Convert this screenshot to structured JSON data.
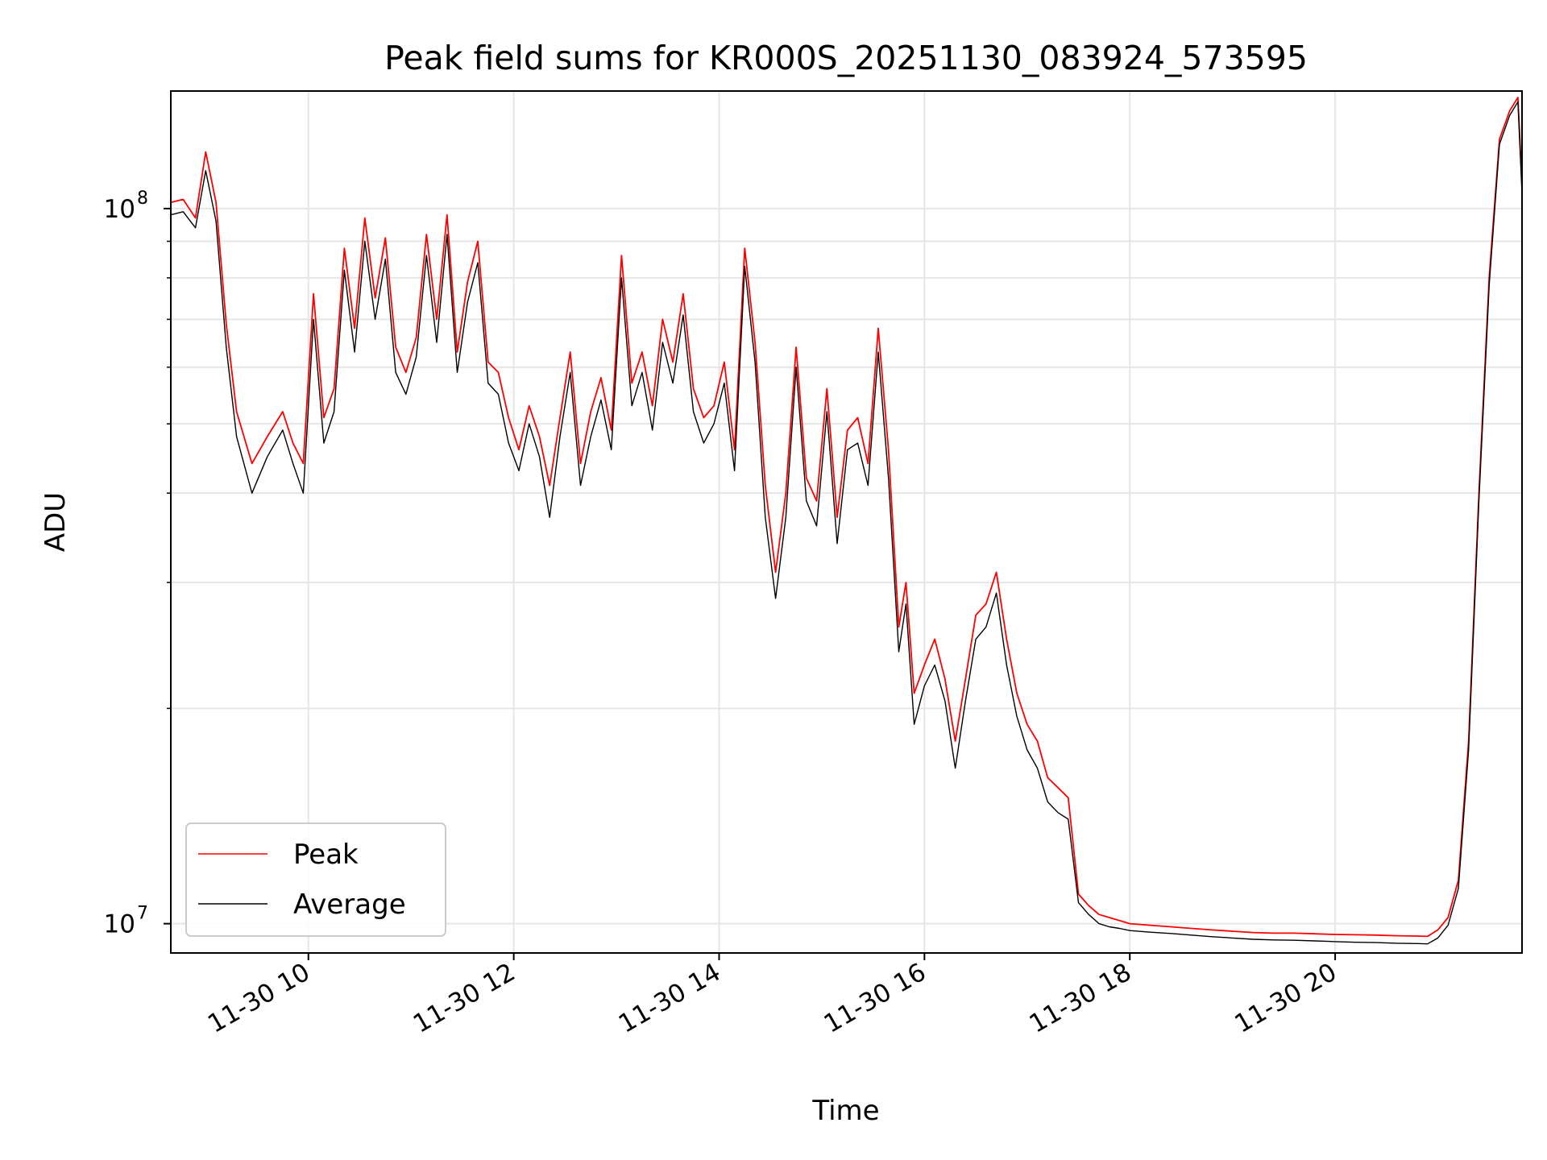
{
  "chart_data": {
    "type": "line",
    "title": "Peak field sums for KR000S_20251130_083924_573595",
    "xlabel": "Time",
    "ylabel": "ADU",
    "yscale": "log",
    "grid": true,
    "legend_loc": "lower-left",
    "x_unit": "hours (2025-11-30)",
    "xlim": [
      8.66,
      21.82
    ],
    "ylim": [
      9100000,
      146000000
    ],
    "x_ticks": [
      10,
      12,
      14,
      16,
      18,
      20
    ],
    "x_tick_labels": [
      "11-30 10",
      "11-30 12",
      "11-30 14",
      "11-30 16",
      "11-30 18",
      "11-30 20"
    ],
    "y_ticks": [
      10000000,
      100000000
    ],
    "y_tick_labels": [
      {
        "base": "10",
        "exp": "7"
      },
      {
        "base": "10",
        "exp": "8"
      }
    ],
    "series": [
      {
        "name": "Peak",
        "color": "#ff0000",
        "x": [
          8.66,
          8.78,
          8.9,
          9.0,
          9.1,
          9.2,
          9.3,
          9.45,
          9.6,
          9.75,
          9.85,
          9.95,
          10.05,
          10.15,
          10.25,
          10.35,
          10.45,
          10.55,
          10.65,
          10.75,
          10.85,
          10.95,
          11.05,
          11.15,
          11.25,
          11.35,
          11.45,
          11.55,
          11.65,
          11.75,
          11.85,
          11.95,
          12.05,
          12.15,
          12.25,
          12.35,
          12.45,
          12.55,
          12.65,
          12.75,
          12.85,
          12.95,
          13.05,
          13.15,
          13.25,
          13.35,
          13.45,
          13.55,
          13.65,
          13.75,
          13.85,
          13.95,
          14.05,
          14.15,
          14.25,
          14.35,
          14.45,
          14.55,
          14.65,
          14.75,
          14.85,
          14.95,
          15.05,
          15.15,
          15.25,
          15.35,
          15.45,
          15.55,
          15.65,
          15.75,
          15.82,
          15.9,
          16.0,
          16.1,
          16.2,
          16.3,
          16.4,
          16.5,
          16.6,
          16.7,
          16.8,
          16.9,
          17.0,
          17.1,
          17.2,
          17.3,
          17.4,
          17.5,
          17.6,
          17.7,
          17.8,
          17.9,
          18.0,
          18.2,
          18.4,
          18.6,
          18.8,
          19.0,
          19.2,
          19.4,
          19.6,
          19.8,
          20.0,
          20.2,
          20.4,
          20.6,
          20.8,
          20.9,
          21.0,
          21.1,
          21.2,
          21.3,
          21.4,
          21.5,
          21.6,
          21.7,
          21.78,
          21.82
        ],
        "values": [
          102000000,
          103000000,
          97000000,
          120000000,
          102000000,
          69000000,
          52000000,
          44000000,
          48000000,
          52000000,
          47000000,
          44000000,
          76000000,
          51000000,
          56000000,
          88000000,
          68000000,
          97000000,
          75000000,
          91000000,
          64000000,
          59000000,
          66000000,
          92000000,
          70000000,
          98000000,
          63000000,
          79000000,
          90000000,
          61000000,
          59000000,
          51000000,
          46000000,
          53000000,
          48000000,
          41000000,
          51000000,
          63000000,
          44000000,
          52000000,
          58000000,
          49000000,
          86000000,
          57000000,
          63000000,
          53000000,
          70000000,
          61000000,
          76000000,
          56000000,
          51000000,
          53000000,
          61000000,
          46000000,
          88000000,
          65000000,
          41000000,
          31000000,
          40000000,
          64000000,
          42000000,
          39000000,
          56000000,
          37000000,
          49000000,
          51000000,
          44000000,
          68000000,
          46000000,
          26000000,
          30000000,
          21000000,
          23000000,
          25000000,
          22000000,
          18000000,
          22000000,
          27000000,
          28000000,
          31000000,
          25000000,
          21000000,
          19000000,
          18000000,
          16000000,
          15500000,
          15000000,
          11000000,
          10600000,
          10300000,
          10200000,
          10100000,
          10000000,
          9950000,
          9900000,
          9850000,
          9800000,
          9760000,
          9720000,
          9700000,
          9700000,
          9680000,
          9660000,
          9650000,
          9640000,
          9620000,
          9610000,
          9600000,
          9800000,
          10200000,
          11500000,
          18000000,
          40000000,
          80000000,
          125000000,
          137000000,
          143000000,
          108000000
        ]
      },
      {
        "name": "Average",
        "color": "#000000",
        "x": [
          8.66,
          8.78,
          8.9,
          9.0,
          9.1,
          9.2,
          9.3,
          9.45,
          9.6,
          9.75,
          9.85,
          9.95,
          10.05,
          10.15,
          10.25,
          10.35,
          10.45,
          10.55,
          10.65,
          10.75,
          10.85,
          10.95,
          11.05,
          11.15,
          11.25,
          11.35,
          11.45,
          11.55,
          11.65,
          11.75,
          11.85,
          11.95,
          12.05,
          12.15,
          12.25,
          12.35,
          12.45,
          12.55,
          12.65,
          12.75,
          12.85,
          12.95,
          13.05,
          13.15,
          13.25,
          13.35,
          13.45,
          13.55,
          13.65,
          13.75,
          13.85,
          13.95,
          14.05,
          14.15,
          14.25,
          14.35,
          14.45,
          14.55,
          14.65,
          14.75,
          14.85,
          14.95,
          15.05,
          15.15,
          15.25,
          15.35,
          15.45,
          15.55,
          15.65,
          15.75,
          15.82,
          15.9,
          16.0,
          16.1,
          16.2,
          16.3,
          16.4,
          16.5,
          16.6,
          16.7,
          16.8,
          16.9,
          17.0,
          17.1,
          17.2,
          17.3,
          17.4,
          17.5,
          17.6,
          17.7,
          17.8,
          17.9,
          18.0,
          18.2,
          18.4,
          18.6,
          18.8,
          19.0,
          19.2,
          19.4,
          19.6,
          19.8,
          20.0,
          20.2,
          20.4,
          20.6,
          20.8,
          20.9,
          21.0,
          21.1,
          21.2,
          21.3,
          21.4,
          21.5,
          21.6,
          21.7,
          21.78,
          21.82
        ],
        "values": [
          98000000,
          99000000,
          94000000,
          113000000,
          96000000,
          64000000,
          48000000,
          40000000,
          45000000,
          49000000,
          44000000,
          40000000,
          70000000,
          47000000,
          52000000,
          82000000,
          63000000,
          90000000,
          70000000,
          85000000,
          59000000,
          55000000,
          62000000,
          86000000,
          65000000,
          92000000,
          59000000,
          74000000,
          84000000,
          57000000,
          55000000,
          47000000,
          43000000,
          50000000,
          45000000,
          37000000,
          48000000,
          59000000,
          41000000,
          48000000,
          54000000,
          46000000,
          80000000,
          53000000,
          59000000,
          49000000,
          65000000,
          57000000,
          71000000,
          52000000,
          47000000,
          50000000,
          57000000,
          43000000,
          83000000,
          61000000,
          37000000,
          28500000,
          37000000,
          60000000,
          39000000,
          36000000,
          52000000,
          34000000,
          46000000,
          47000000,
          41000000,
          63000000,
          42000000,
          24000000,
          28000000,
          19000000,
          21500000,
          23000000,
          20500000,
          16500000,
          20500000,
          25000000,
          26000000,
          29000000,
          23000000,
          19500000,
          17500000,
          16500000,
          14800000,
          14300000,
          14000000,
          10700000,
          10300000,
          10000000,
          9900000,
          9850000,
          9780000,
          9730000,
          9690000,
          9640000,
          9590000,
          9550000,
          9510000,
          9490000,
          9480000,
          9460000,
          9440000,
          9420000,
          9410000,
          9390000,
          9380000,
          9370000,
          9550000,
          9950000,
          11200000,
          17500000,
          39000000,
          78000000,
          123000000,
          135000000,
          141000000,
          105000000
        ]
      }
    ]
  }
}
